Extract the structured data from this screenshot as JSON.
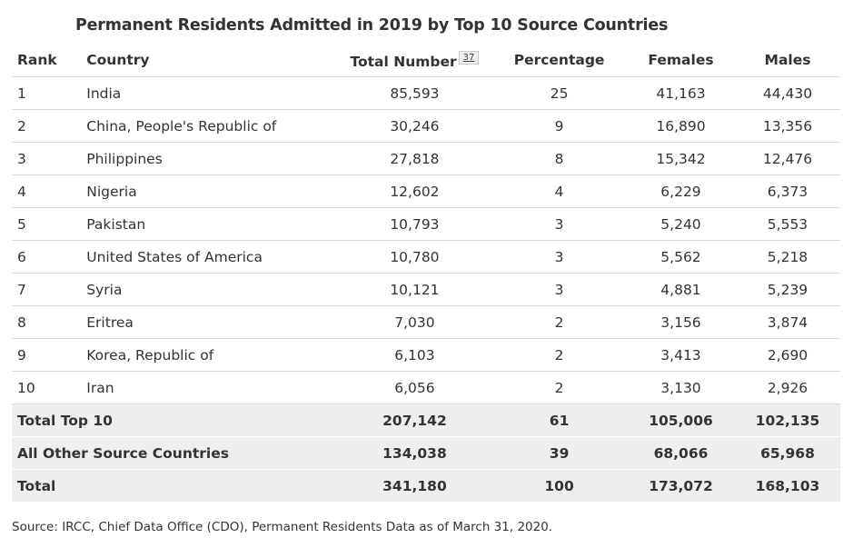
{
  "title": "Permanent Residents Admitted in 2019 by Top 10 Source Countries",
  "columns": {
    "rank": "Rank",
    "country": "Country",
    "total": "Total Number",
    "footnote": "37",
    "percentage": "Percentage",
    "females": "Females",
    "males": "Males"
  },
  "rows": [
    {
      "rank": "1",
      "country": "India",
      "total": "85,593",
      "percentage": "25",
      "females": "41,163",
      "males": "44,430"
    },
    {
      "rank": "2",
      "country": "China, People's Republic of",
      "total": "30,246",
      "percentage": "9",
      "females": "16,890",
      "males": "13,356"
    },
    {
      "rank": "3",
      "country": "Philippines",
      "total": "27,818",
      "percentage": "8",
      "females": "15,342",
      "males": "12,476"
    },
    {
      "rank": "4",
      "country": "Nigeria",
      "total": "12,602",
      "percentage": "4",
      "females": "6,229",
      "males": "6,373"
    },
    {
      "rank": "5",
      "country": "Pakistan",
      "total": "10,793",
      "percentage": "3",
      "females": "5,240",
      "males": "5,553"
    },
    {
      "rank": "6",
      "country": "United States of America",
      "total": "10,780",
      "percentage": "3",
      "females": "5,562",
      "males": "5,218"
    },
    {
      "rank": "7",
      "country": "Syria",
      "total": "10,121",
      "percentage": "3",
      "females": "4,881",
      "males": "5,239"
    },
    {
      "rank": "8",
      "country": "Eritrea",
      "total": "7,030",
      "percentage": "2",
      "females": "3,156",
      "males": "3,874"
    },
    {
      "rank": "9",
      "country": "Korea, Republic of",
      "total": "6,103",
      "percentage": "2",
      "females": "3,413",
      "males": "2,690"
    },
    {
      "rank": "10",
      "country": "Iran",
      "total": "6,056",
      "percentage": "2",
      "females": "3,130",
      "males": "2,926"
    }
  ],
  "summary": [
    {
      "label": "Total Top 10",
      "total": "207,142",
      "percentage": "61",
      "females": "105,006",
      "males": "102,135"
    },
    {
      "label": "All Other Source Countries",
      "total": "134,038",
      "percentage": "39",
      "females": "68,066",
      "males": "65,968"
    },
    {
      "label": "Total",
      "total": "341,180",
      "percentage": "100",
      "females": "173,072",
      "males": "168,103"
    }
  ],
  "source": "Source: IRCC, Chief Data Office (CDO), Permanent Residents Data as of March 31, 2020.",
  "colors": {
    "text": "#333333",
    "summary_background": "#eeeeee",
    "row_border": "#d8d8d8",
    "link": "#284162"
  }
}
